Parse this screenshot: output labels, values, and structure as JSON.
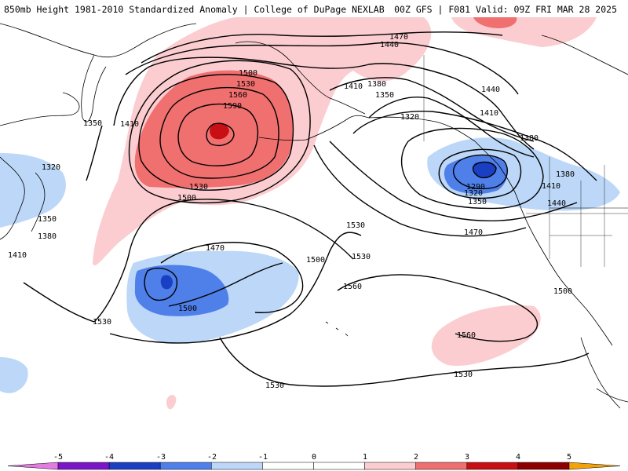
{
  "header": {
    "title_left": "850mb Height 1981-2010 Standardized Anomaly | College of DuPage NEXLAB",
    "title_right": "00Z GFS | F081 Valid: 09Z FRI MAR 28 2025"
  },
  "colors": {
    "anom_neg5": "#e37be0",
    "anom_neg4": "#7a16c8",
    "anom_neg3": "#1b3fc2",
    "anom_neg2": "#4f7fe8",
    "anom_neg1": "#bcd7f7",
    "anom_zero": "#ffffff",
    "anom_pos1": "#fbcdd0",
    "anom_pos2": "#f06f6f",
    "anom_pos3": "#c80f13",
    "anom_pos4": "#8e0000",
    "anom_pos5": "#f4a20b",
    "contour": "#000000",
    "coastline": "#000000"
  },
  "colorbar": {
    "ticks": [
      "-5",
      "-4",
      "-3",
      "-2",
      "-1",
      "0",
      "1",
      "2",
      "3",
      "4",
      "5"
    ]
  },
  "contour_labels": [
    "1500",
    "1530",
    "1560",
    "1590",
    "1470",
    "1440",
    "1410",
    "1380",
    "1350",
    "1320",
    "1350",
    "1410",
    "1320",
    "1350",
    "1380",
    "1410",
    "1500",
    "1530",
    "1470",
    "1500",
    "1530",
    "1530",
    "1500",
    "1530",
    "1560",
    "1560",
    "1530",
    "1530",
    "1290",
    "1320",
    "1350",
    "1470",
    "1380",
    "1380",
    "1410",
    "1440",
    "1500",
    "1410",
    "1440"
  ]
}
